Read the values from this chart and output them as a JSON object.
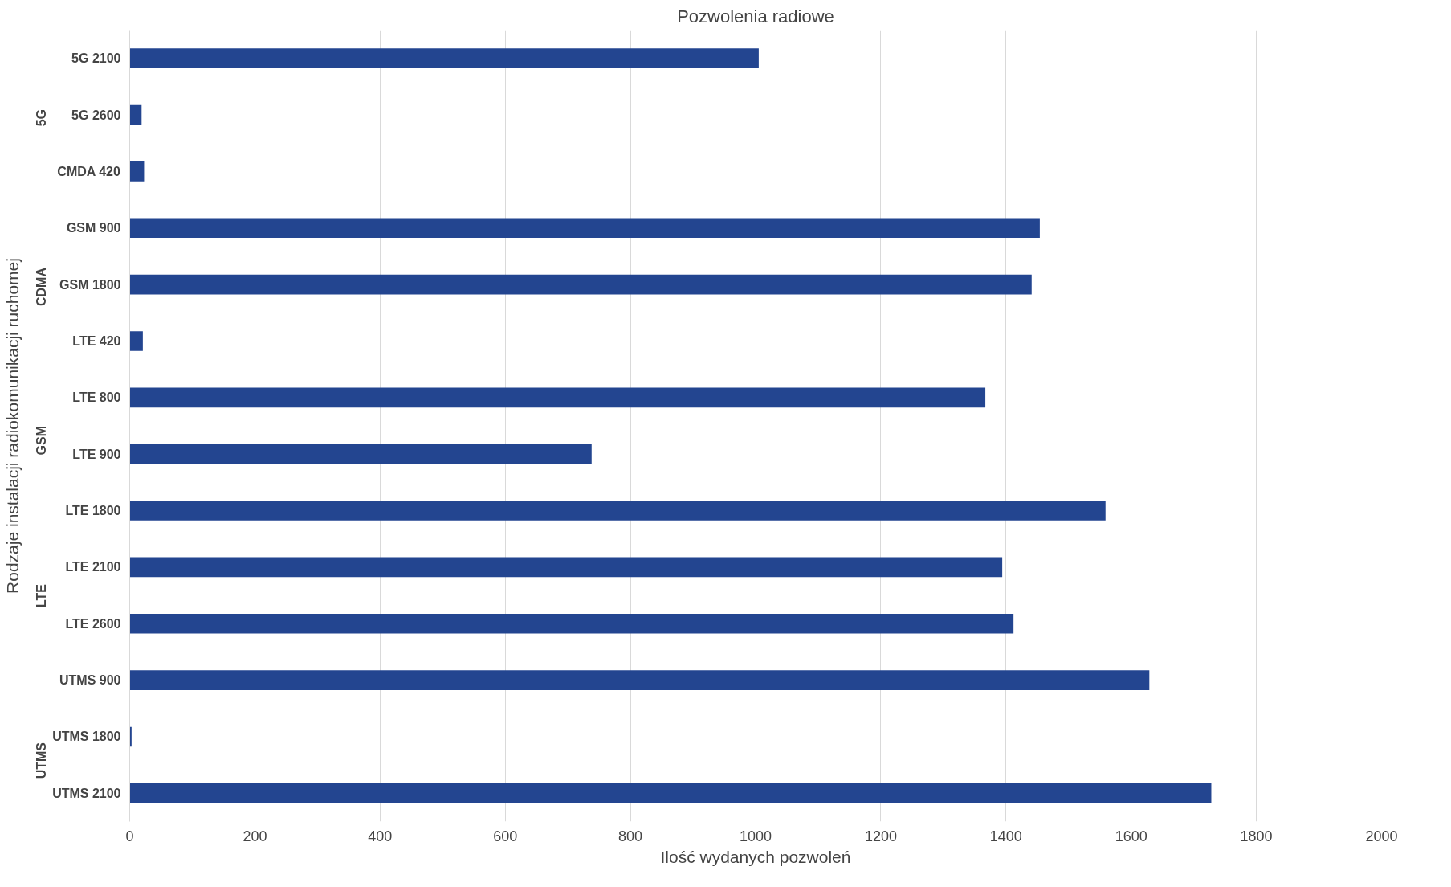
{
  "chart_data": {
    "type": "bar",
    "orientation": "horizontal",
    "title": "Pozwolenia radiowe",
    "xlabel": "Ilość wydanych pozwoleń",
    "ylabel": "Rodzaje instalacji radiokomunikacji ruchomej",
    "categories": [
      "5G 2100",
      "5G 2600",
      "CMDA 420",
      "GSM 900",
      "GSM 1800",
      "LTE 420",
      "LTE 800",
      "LTE 900",
      "LTE 1800",
      "LTE 2100",
      "LTE 2600",
      "UTMS 900",
      "UTMS 1800",
      "UTMS 2100"
    ],
    "values": [
      1005,
      19,
      23,
      1454,
      1441,
      21,
      1367,
      738,
      1559,
      1394,
      1412,
      1629,
      3,
      1728
    ],
    "color": "#234590",
    "xlim": [
      0,
      2000
    ],
    "xticks": [
      0,
      200,
      400,
      600,
      800,
      1000,
      1200,
      1400,
      1600,
      1800,
      2000
    ],
    "grid": "x",
    "annotations": [
      "5G",
      "CDMA",
      "GSM",
      "LTE",
      "UTMS"
    ]
  }
}
